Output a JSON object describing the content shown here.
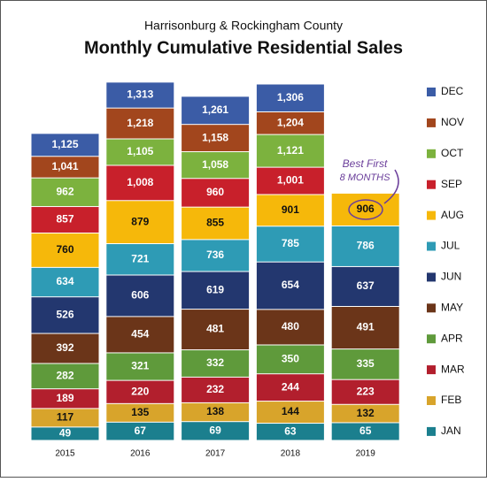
{
  "chart_data": {
    "type": "bar",
    "subtitle": "Harrisonburg & Rockingham County",
    "title": "Monthly Cumulative Residential Sales",
    "categories": [
      "2015",
      "2016",
      "2017",
      "2018",
      "2019"
    ],
    "ylim": [
      0,
      1400
    ],
    "cumulative": true,
    "legend": "right",
    "annotation": [
      "Best First",
      "8 MONTHS"
    ],
    "series": [
      {
        "name": "JAN",
        "color": "#1b7f8e",
        "values": [
          49,
          67,
          69,
          63,
          65
        ],
        "value_labels": [
          "49",
          "67",
          "69",
          "63",
          "65"
        ]
      },
      {
        "name": "FEB",
        "color": "#d8a42b",
        "values": [
          117,
          135,
          138,
          144,
          132
        ],
        "value_labels": [
          "117",
          "135",
          "138",
          "144",
          "132"
        ]
      },
      {
        "name": "MAR",
        "color": "#b21f2d",
        "values": [
          189,
          220,
          232,
          244,
          223
        ],
        "value_labels": [
          "189",
          "220",
          "232",
          "244",
          "223"
        ]
      },
      {
        "name": "APR",
        "color": "#5f9a3b",
        "values": [
          282,
          321,
          332,
          350,
          335
        ],
        "value_labels": [
          "282",
          "321",
          "332",
          "350",
          "335"
        ]
      },
      {
        "name": "MAY",
        "color": "#6b3519",
        "values": [
          392,
          454,
          481,
          480,
          491
        ],
        "value_labels": [
          "392",
          "454",
          "481",
          "480",
          "491"
        ]
      },
      {
        "name": "JUN",
        "color": "#23376f",
        "values": [
          526,
          606,
          619,
          654,
          637
        ],
        "value_labels": [
          "526",
          "606",
          "619",
          "654",
          "637"
        ]
      },
      {
        "name": "JUL",
        "color": "#2e9bb5",
        "values": [
          634,
          721,
          736,
          785,
          786
        ],
        "value_labels": [
          "634",
          "721",
          "736",
          "785",
          "786"
        ]
      },
      {
        "name": "AUG",
        "color": "#f6b80a",
        "values": [
          760,
          879,
          855,
          901,
          906
        ],
        "value_labels": [
          "760",
          "879",
          "855",
          "901",
          "906"
        ]
      },
      {
        "name": "SEP",
        "color": "#c8202b",
        "values": [
          857,
          1008,
          960,
          1001,
          null
        ],
        "value_labels": [
          "857",
          "1,008",
          "960",
          "1,001",
          null
        ]
      },
      {
        "name": "OCT",
        "color": "#7cb23e",
        "values": [
          962,
          1105,
          1058,
          1121,
          null
        ],
        "value_labels": [
          "962",
          "1,105",
          "1,058",
          "1,121",
          null
        ]
      },
      {
        "name": "NOV",
        "color": "#a2461d",
        "values": [
          1041,
          1218,
          1158,
          1204,
          null
        ],
        "value_labels": [
          "1,041",
          "1,218",
          "1,158",
          "1,204",
          null
        ]
      },
      {
        "name": "DEC",
        "color": "#3b5ca6",
        "values": [
          1125,
          1313,
          1261,
          1306,
          null
        ],
        "value_labels": [
          "1,125",
          "1,313",
          "1,261",
          "1,306",
          null
        ]
      }
    ]
  }
}
